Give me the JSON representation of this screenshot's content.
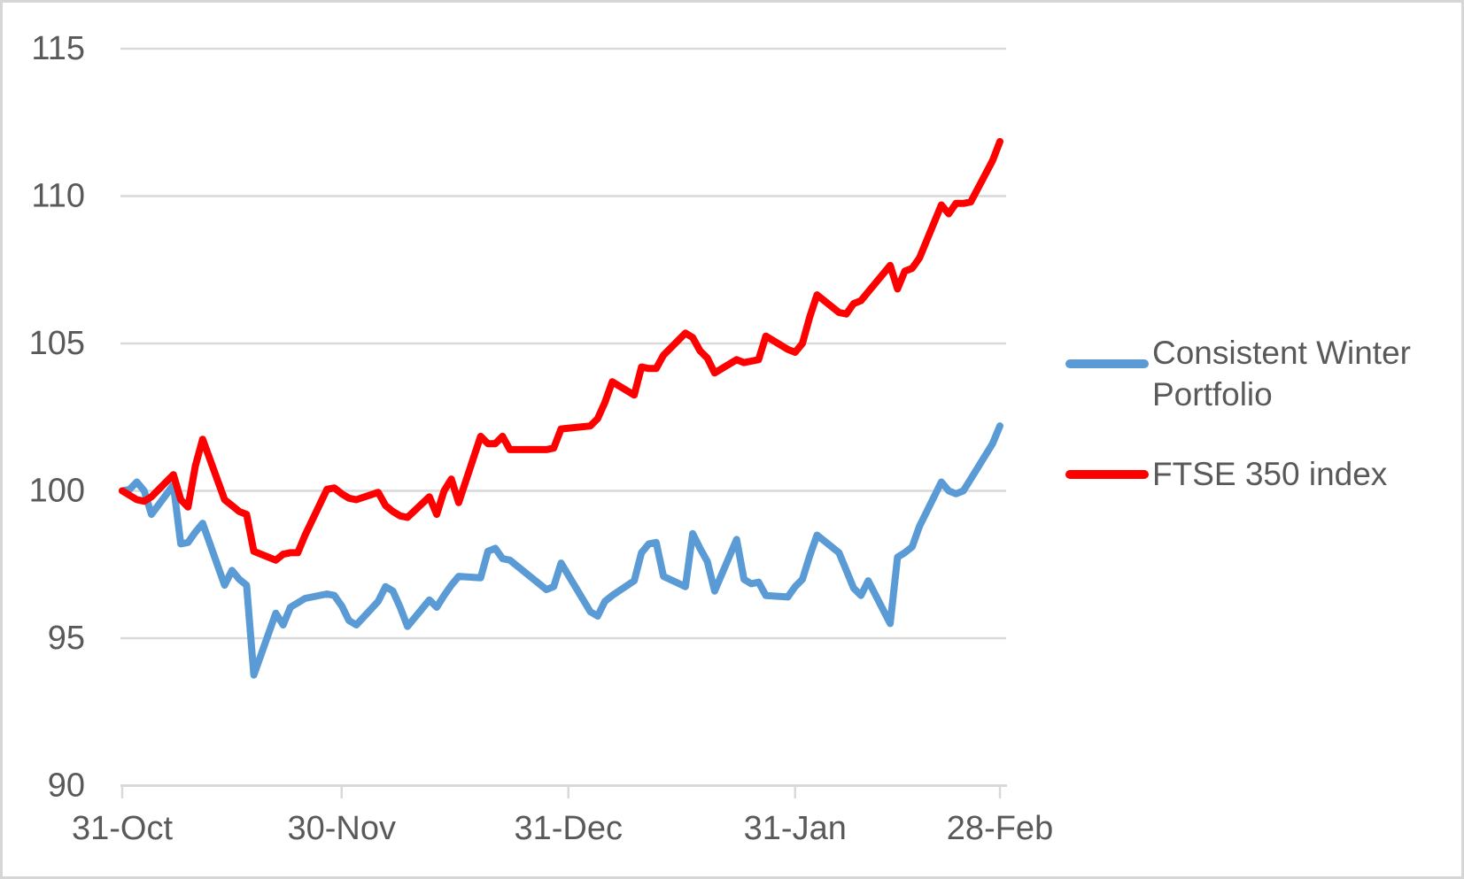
{
  "chart_data": {
    "type": "line",
    "title": "",
    "xlabel": "",
    "ylabel": "",
    "grid": "horizontal",
    "legend_position": "right",
    "y_axis": {
      "min": 90,
      "max": 115,
      "step": 5,
      "ticks": [
        90,
        95,
        100,
        105,
        110,
        115
      ]
    },
    "x_axis": {
      "range_days": [
        0,
        120
      ],
      "ticks": [
        {
          "label": "31-Oct",
          "day": 0
        },
        {
          "label": "30-Nov",
          "day": 30
        },
        {
          "label": "31-Dec",
          "day": 61
        },
        {
          "label": "31-Jan",
          "day": 92
        },
        {
          "label": "28-Feb",
          "day": 120
        }
      ]
    },
    "dates": [
      "31-Oct",
      "01-Nov",
      "02-Nov",
      "03-Nov",
      "04-Nov",
      "07-Nov",
      "08-Nov",
      "09-Nov",
      "10-Nov",
      "11-Nov",
      "14-Nov",
      "15-Nov",
      "16-Nov",
      "17-Nov",
      "18-Nov",
      "21-Nov",
      "22-Nov",
      "23-Nov",
      "24-Nov",
      "25-Nov",
      "28-Nov",
      "29-Nov",
      "30-Nov",
      "01-Dec",
      "02-Dec",
      "05-Dec",
      "06-Dec",
      "07-Dec",
      "08-Dec",
      "09-Dec",
      "12-Dec",
      "13-Dec",
      "14-Dec",
      "15-Dec",
      "16-Dec",
      "19-Dec",
      "20-Dec",
      "21-Dec",
      "22-Dec",
      "23-Dec",
      "28-Dec",
      "29-Dec",
      "30-Dec",
      "03-Jan",
      "04-Jan",
      "05-Jan",
      "06-Jan",
      "09-Jan",
      "10-Jan",
      "11-Jan",
      "12-Jan",
      "13-Jan",
      "16-Jan",
      "17-Jan",
      "18-Jan",
      "19-Jan",
      "20-Jan",
      "23-Jan",
      "24-Jan",
      "25-Jan",
      "26-Jan",
      "27-Jan",
      "30-Jan",
      "31-Jan",
      "01-Feb",
      "02-Feb",
      "03-Feb",
      "06-Feb",
      "07-Feb",
      "08-Feb",
      "09-Feb",
      "10-Feb",
      "13-Feb",
      "14-Feb",
      "15-Feb",
      "16-Feb",
      "17-Feb",
      "20-Feb",
      "21-Feb",
      "22-Feb",
      "23-Feb",
      "24-Feb",
      "27-Feb",
      "28-Feb"
    ],
    "day_offsets": [
      0,
      1,
      2,
      3,
      4,
      7,
      8,
      9,
      10,
      11,
      14,
      15,
      16,
      17,
      18,
      21,
      22,
      23,
      24,
      25,
      28,
      29,
      30,
      31,
      32,
      35,
      36,
      37,
      38,
      39,
      42,
      43,
      44,
      45,
      46,
      49,
      50,
      51,
      52,
      53,
      58,
      59,
      60,
      64,
      65,
      66,
      67,
      70,
      71,
      72,
      73,
      74,
      77,
      78,
      79,
      80,
      81,
      84,
      85,
      86,
      87,
      88,
      91,
      92,
      93,
      94,
      95,
      98,
      99,
      100,
      101,
      102,
      105,
      106,
      107,
      108,
      109,
      112,
      113,
      114,
      115,
      116,
      119,
      120
    ],
    "series": [
      {
        "id": "consistent-winter-portfolio",
        "name": "Consistent Winter Portfolio",
        "color": "#5B9BD5",
        "values": [
          100,
          100.05,
          100.3,
          100,
          99.2,
          100.2,
          98.2,
          98.25,
          98.6,
          98.9,
          96.8,
          97.3,
          97,
          96.8,
          93.75,
          95.85,
          95.45,
          96.05,
          96.2,
          96.35,
          96.5,
          96.45,
          96.1,
          95.6,
          95.45,
          96.25,
          96.75,
          96.6,
          96.05,
          95.4,
          96.3,
          96.05,
          96.45,
          96.8,
          97.1,
          97.05,
          97.95,
          98.05,
          97.7,
          97.65,
          96.65,
          96.75,
          97.55,
          95.9,
          95.75,
          96.25,
          96.45,
          96.95,
          97.9,
          98.2,
          98.25,
          97.1,
          96.75,
          98.55,
          98.05,
          97.6,
          96.6,
          98.35,
          97,
          96.85,
          96.9,
          96.45,
          96.4,
          96.75,
          97,
          97.8,
          98.5,
          97.9,
          97.3,
          96.7,
          96.45,
          96.95,
          95.5,
          97.75,
          97.9,
          98.1,
          98.8,
          100.3,
          100,
          99.9,
          100,
          100.4,
          101.6,
          102.2
        ]
      },
      {
        "id": "ftse-350-index",
        "name": "FTSE 350 index",
        "color": "#FF0000",
        "values": [
          100,
          99.85,
          99.7,
          99.65,
          99.8,
          100.55,
          99.7,
          99.45,
          100.85,
          101.75,
          99.7,
          99.5,
          99.3,
          99.2,
          97.95,
          97.65,
          97.85,
          97.9,
          97.9,
          98.5,
          100.05,
          100.1,
          99.9,
          99.75,
          99.7,
          99.95,
          99.5,
          99.3,
          99.15,
          99.1,
          99.8,
          99.2,
          100,
          100.4,
          99.6,
          101.85,
          101.6,
          101.6,
          101.85,
          101.4,
          101.4,
          101.45,
          102.1,
          102.2,
          102.45,
          103,
          103.7,
          103.25,
          104.2,
          104.15,
          104.15,
          104.6,
          105.35,
          105.2,
          104.75,
          104.5,
          104,
          104.45,
          104.35,
          104.4,
          104.45,
          105.25,
          104.8,
          104.7,
          105,
          105.9,
          106.65,
          106.05,
          106,
          106.35,
          106.45,
          106.75,
          107.65,
          106.85,
          107.45,
          107.55,
          107.9,
          109.7,
          109.4,
          109.75,
          109.75,
          109.8,
          111.2,
          111.85
        ]
      }
    ]
  },
  "colors": {
    "gridline": "#D9D9D9",
    "axis": "#D9D9D9",
    "text": "#595959",
    "background": "#FFFFFF",
    "border": "#D6D6D6"
  }
}
